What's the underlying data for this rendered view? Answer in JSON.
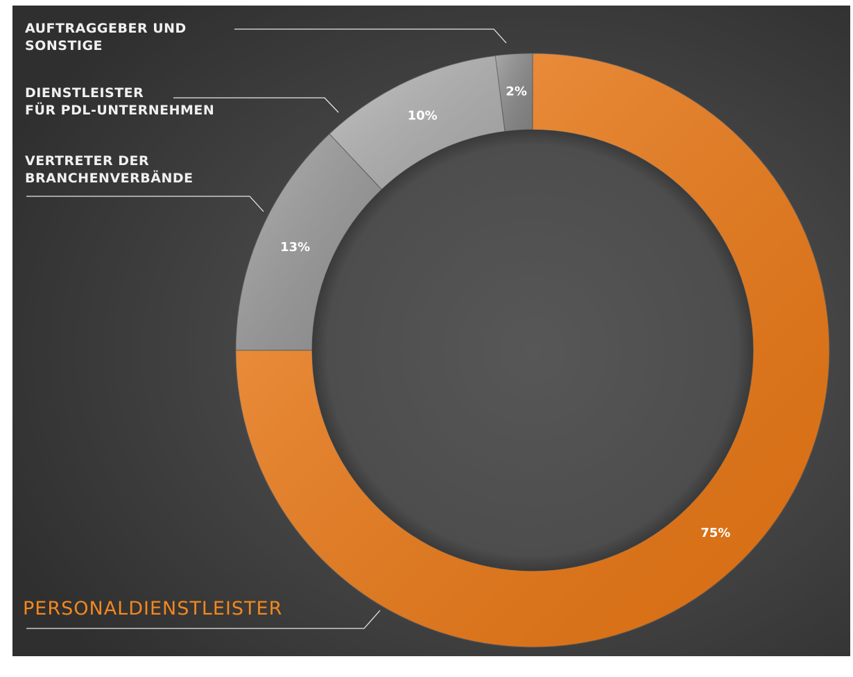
{
  "chart_data": {
    "type": "pie",
    "categories": [
      "PERSONALDIENSTLEISTER",
      "VERTRETER DER\nBRANCHENVERBÄNDE",
      "DIENSTLEISTER\nFÜR PDL-UNTERNEHMEN",
      "AUFTRAGGEBER UND\nSONSTIGE"
    ],
    "values": [
      75,
      13,
      10,
      2
    ],
    "value_labels": [
      "75%",
      "13%",
      "10%",
      "2%"
    ],
    "colors": [
      "#f47c14",
      "#9c9c9c",
      "#b4b4b4",
      "#8c8c8c"
    ]
  }
}
